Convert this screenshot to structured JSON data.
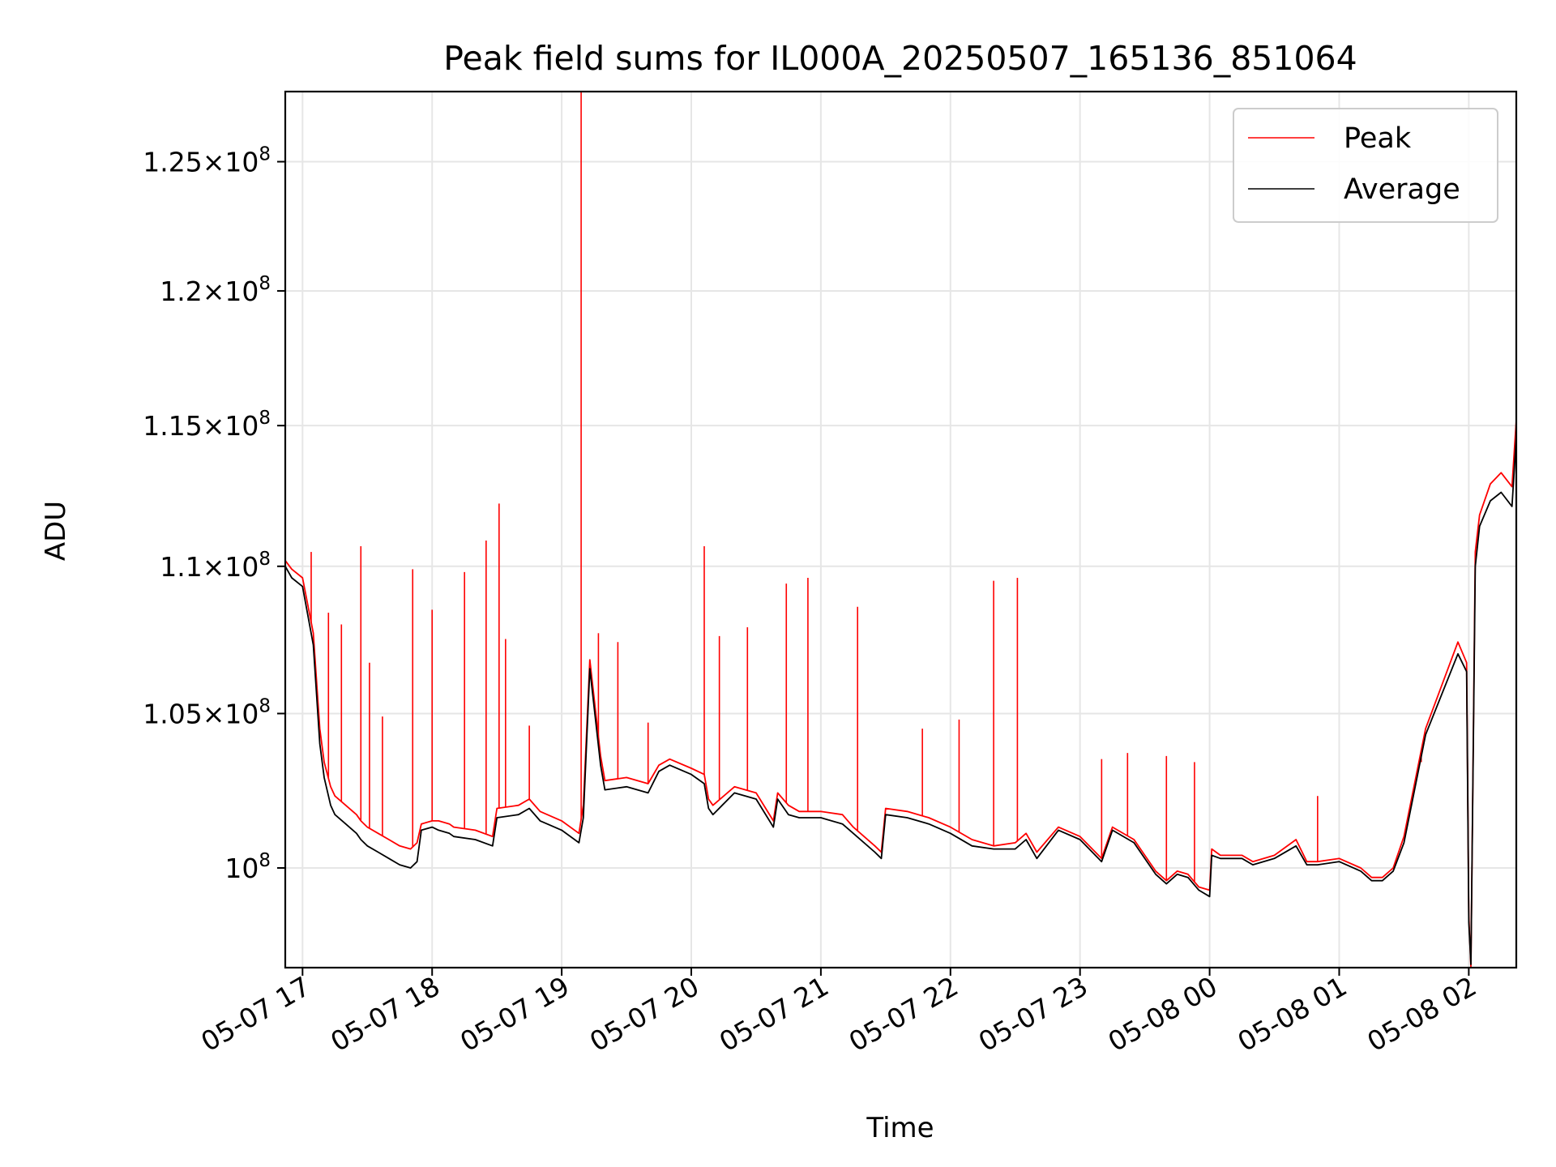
{
  "chart_data": {
    "type": "line",
    "title": "Peak field sums for IL000A_20250507_165136_851064",
    "xlabel": "Time",
    "ylabel": "ADU",
    "y_scale": "log",
    "grid": true,
    "legend_position": "top-right",
    "x_tick_labels": [
      "05-07 17",
      "05-07 18",
      "05-07 19",
      "05-07 20",
      "05-07 21",
      "05-07 22",
      "05-07 23",
      "05-08 00",
      "05-08 01",
      "05-08 02"
    ],
    "y_ticks": [
      {
        "value": 100000000,
        "mantissa": "",
        "exponent": "8"
      },
      {
        "value": 105000000,
        "mantissa": "1.05",
        "exponent": "8"
      },
      {
        "value": 110000000,
        "mantissa": "1.1",
        "exponent": "8"
      },
      {
        "value": 115000000,
        "mantissa": "1.15",
        "exponent": "8"
      },
      {
        "value": 120000000,
        "mantissa": "1.2",
        "exponent": "8"
      },
      {
        "value": 125000000,
        "mantissa": "1.25",
        "exponent": "8"
      }
    ],
    "xlim": [
      "2025-05-07T16:52",
      "2025-05-08T02:22"
    ],
    "ylim": [
      96900000,
      127800000
    ],
    "series": [
      {
        "name": "Peak",
        "color": "#ff0000",
        "x": [
          "2025-05-07T16:52",
          "2025-05-07T16:55",
          "2025-05-07T17:00",
          "2025-05-07T17:05",
          "2025-05-07T17:08",
          "2025-05-07T17:10",
          "2025-05-07T17:13",
          "2025-05-07T17:15",
          "2025-05-07T17:20",
          "2025-05-07T17:25",
          "2025-05-07T17:27",
          "2025-05-07T17:30",
          "2025-05-07T17:35",
          "2025-05-07T17:40",
          "2025-05-07T17:45",
          "2025-05-07T17:50",
          "2025-05-07T17:53",
          "2025-05-07T17:55",
          "2025-05-07T18:00",
          "2025-05-07T18:03",
          "2025-05-07T18:08",
          "2025-05-07T18:10",
          "2025-05-07T18:20",
          "2025-05-07T18:28",
          "2025-05-07T18:30",
          "2025-05-07T18:40",
          "2025-05-07T18:45",
          "2025-05-07T18:50",
          "2025-05-07T19:00",
          "2025-05-07T19:08",
          "2025-05-07T19:10",
          "2025-05-07T19:13",
          "2025-05-07T19:18",
          "2025-05-07T19:20",
          "2025-05-07T19:30",
          "2025-05-07T19:40",
          "2025-05-07T19:45",
          "2025-05-07T19:50",
          "2025-05-07T20:00",
          "2025-05-07T20:06",
          "2025-05-07T20:08",
          "2025-05-07T20:10",
          "2025-05-07T20:20",
          "2025-05-07T20:30",
          "2025-05-07T20:38",
          "2025-05-07T20:40",
          "2025-05-07T20:45",
          "2025-05-07T20:50",
          "2025-05-07T21:00",
          "2025-05-07T21:10",
          "2025-05-07T21:15",
          "2025-05-07T21:25",
          "2025-05-07T21:28",
          "2025-05-07T21:30",
          "2025-05-07T21:40",
          "2025-05-07T21:50",
          "2025-05-07T22:00",
          "2025-05-07T22:10",
          "2025-05-07T22:20",
          "2025-05-07T22:30",
          "2025-05-07T22:35",
          "2025-05-07T22:40",
          "2025-05-07T22:50",
          "2025-05-07T23:00",
          "2025-05-07T23:10",
          "2025-05-07T23:15",
          "2025-05-07T23:25",
          "2025-05-07T23:30",
          "2025-05-07T23:35",
          "2025-05-07T23:40",
          "2025-05-07T23:45",
          "2025-05-07T23:50",
          "2025-05-07T23:55",
          "2025-05-08T00:00",
          "2025-05-08T00:01",
          "2025-05-08T00:05",
          "2025-05-08T00:15",
          "2025-05-08T00:20",
          "2025-05-08T00:30",
          "2025-05-08T00:40",
          "2025-05-08T00:45",
          "2025-05-08T00:50",
          "2025-05-08T01:00",
          "2025-05-08T01:10",
          "2025-05-08T01:15",
          "2025-05-08T01:20",
          "2025-05-08T01:25",
          "2025-05-08T01:30",
          "2025-05-08T01:40",
          "2025-05-08T01:55",
          "2025-05-08T01:59",
          "2025-05-08T02:00",
          "2025-05-08T02:01",
          "2025-05-08T02:03",
          "2025-05-08T02:05",
          "2025-05-08T02:10",
          "2025-05-08T02:15",
          "2025-05-08T02:20",
          "2025-05-08T02:22"
        ],
        "y": [
          110200000,
          109900000,
          109600000,
          107700000,
          104500000,
          103400000,
          102600000,
          102300000,
          102000000,
          101700000,
          101500000,
          101300000,
          101100000,
          100900000,
          100700000,
          100600000,
          100800000,
          101400000,
          101500000,
          101500000,
          101400000,
          101300000,
          101200000,
          101000000,
          101900000,
          102000000,
          102200000,
          101800000,
          101500000,
          101100000,
          102000000,
          106800000,
          103600000,
          102800000,
          102900000,
          102700000,
          103300000,
          103500000,
          103200000,
          103000000,
          102200000,
          102000000,
          102600000,
          102400000,
          101500000,
          102400000,
          102000000,
          101800000,
          101800000,
          101700000,
          101300000,
          100700000,
          100500000,
          101900000,
          101800000,
          101600000,
          101300000,
          100900000,
          100700000,
          100800000,
          101100000,
          100500000,
          101300000,
          101000000,
          100300000,
          101300000,
          100900000,
          100400000,
          99900000,
          99600000,
          99900000,
          99800000,
          99400000,
          99300000,
          100600000,
          100400000,
          100400000,
          100200000,
          100400000,
          100900000,
          100200000,
          100200000,
          100300000,
          100000000,
          99700000,
          99700000,
          100000000,
          101000000,
          104500000,
          107400000,
          106700000,
          98500000,
          96900000,
          110500000,
          111800000,
          112900000,
          113300000,
          112800000,
          115200000
        ]
      },
      {
        "name": "Average",
        "color": "#000000",
        "x": [
          "2025-05-07T16:52",
          "2025-05-07T16:55",
          "2025-05-07T17:00",
          "2025-05-07T17:05",
          "2025-05-07T17:08",
          "2025-05-07T17:10",
          "2025-05-07T17:13",
          "2025-05-07T17:15",
          "2025-05-07T17:20",
          "2025-05-07T17:25",
          "2025-05-07T17:27",
          "2025-05-07T17:30",
          "2025-05-07T17:35",
          "2025-05-07T17:40",
          "2025-05-07T17:45",
          "2025-05-07T17:50",
          "2025-05-07T17:53",
          "2025-05-07T17:55",
          "2025-05-07T18:00",
          "2025-05-07T18:03",
          "2025-05-07T18:08",
          "2025-05-07T18:10",
          "2025-05-07T18:20",
          "2025-05-07T18:28",
          "2025-05-07T18:30",
          "2025-05-07T18:40",
          "2025-05-07T18:45",
          "2025-05-07T18:50",
          "2025-05-07T19:00",
          "2025-05-07T19:08",
          "2025-05-07T19:10",
          "2025-05-07T19:13",
          "2025-05-07T19:18",
          "2025-05-07T19:20",
          "2025-05-07T19:30",
          "2025-05-07T19:40",
          "2025-05-07T19:45",
          "2025-05-07T19:50",
          "2025-05-07T20:00",
          "2025-05-07T20:06",
          "2025-05-07T20:08",
          "2025-05-07T20:10",
          "2025-05-07T20:20",
          "2025-05-07T20:30",
          "2025-05-07T20:38",
          "2025-05-07T20:40",
          "2025-05-07T20:45",
          "2025-05-07T20:50",
          "2025-05-07T21:00",
          "2025-05-07T21:10",
          "2025-05-07T21:15",
          "2025-05-07T21:25",
          "2025-05-07T21:28",
          "2025-05-07T21:30",
          "2025-05-07T21:40",
          "2025-05-07T21:50",
          "2025-05-07T22:00",
          "2025-05-07T22:10",
          "2025-05-07T22:20",
          "2025-05-07T22:30",
          "2025-05-07T22:35",
          "2025-05-07T22:40",
          "2025-05-07T22:50",
          "2025-05-07T23:00",
          "2025-05-07T23:10",
          "2025-05-07T23:15",
          "2025-05-07T23:25",
          "2025-05-07T23:30",
          "2025-05-07T23:35",
          "2025-05-07T23:40",
          "2025-05-07T23:45",
          "2025-05-07T23:50",
          "2025-05-07T23:55",
          "2025-05-08T00:00",
          "2025-05-08T00:01",
          "2025-05-08T00:05",
          "2025-05-08T00:15",
          "2025-05-08T00:20",
          "2025-05-08T00:30",
          "2025-05-08T00:40",
          "2025-05-08T00:45",
          "2025-05-08T00:50",
          "2025-05-08T01:00",
          "2025-05-08T01:10",
          "2025-05-08T01:15",
          "2025-05-08T01:20",
          "2025-05-08T01:25",
          "2025-05-08T01:30",
          "2025-05-08T01:40",
          "2025-05-08T01:55",
          "2025-05-08T01:59",
          "2025-05-08T02:00",
          "2025-05-08T02:01",
          "2025-05-08T02:03",
          "2025-05-08T02:05",
          "2025-05-08T02:10",
          "2025-05-08T02:15",
          "2025-05-08T02:20",
          "2025-05-08T02:22"
        ],
        "y": [
          110000000,
          109600000,
          109300000,
          107300000,
          104000000,
          102900000,
          102000000,
          101700000,
          101400000,
          101100000,
          100900000,
          100700000,
          100500000,
          100300000,
          100100000,
          100000000,
          100200000,
          101200000,
          101300000,
          101200000,
          101100000,
          101000000,
          100900000,
          100700000,
          101600000,
          101700000,
          101900000,
          101500000,
          101200000,
          100800000,
          101600000,
          106500000,
          103300000,
          102500000,
          102600000,
          102400000,
          103100000,
          103300000,
          103000000,
          102700000,
          101900000,
          101700000,
          102400000,
          102200000,
          101300000,
          102200000,
          101700000,
          101600000,
          101600000,
          101400000,
          101100000,
          100500000,
          100300000,
          101700000,
          101600000,
          101400000,
          101100000,
          100700000,
          100600000,
          100600000,
          100900000,
          100300000,
          101200000,
          100900000,
          100200000,
          101200000,
          100800000,
          100300000,
          99800000,
          99500000,
          99800000,
          99700000,
          99300000,
          99100000,
          100400000,
          100300000,
          100300000,
          100100000,
          100300000,
          100700000,
          100100000,
          100100000,
          100200000,
          99900000,
          99600000,
          99600000,
          99900000,
          100800000,
          104300000,
          107000000,
          106400000,
          98300000,
          97000000,
          110000000,
          111400000,
          112300000,
          112600000,
          112100000,
          114600000
        ]
      }
    ],
    "peak_spikes": [
      {
        "x": "2025-05-07T17:04",
        "y": 110500000
      },
      {
        "x": "2025-05-07T17:12",
        "y": 108400000
      },
      {
        "x": "2025-05-07T17:18",
        "y": 108000000
      },
      {
        "x": "2025-05-07T17:27",
        "y": 110700000
      },
      {
        "x": "2025-05-07T17:31",
        "y": 106700000
      },
      {
        "x": "2025-05-07T17:37",
        "y": 104900000
      },
      {
        "x": "2025-05-07T17:51",
        "y": 109900000
      },
      {
        "x": "2025-05-07T18:00",
        "y": 108500000
      },
      {
        "x": "2025-05-07T18:15",
        "y": 109800000
      },
      {
        "x": "2025-05-07T18:25",
        "y": 110900000
      },
      {
        "x": "2025-05-07T18:31",
        "y": 112200000
      },
      {
        "x": "2025-05-07T18:34",
        "y": 107500000
      },
      {
        "x": "2025-05-07T18:45",
        "y": 104600000
      },
      {
        "x": "2025-05-07T19:09",
        "y": 127800000
      },
      {
        "x": "2025-05-07T19:17",
        "y": 107700000
      },
      {
        "x": "2025-05-07T19:26",
        "y": 107400000
      },
      {
        "x": "2025-05-07T19:40",
        "y": 104700000
      },
      {
        "x": "2025-05-07T20:06",
        "y": 110700000
      },
      {
        "x": "2025-05-07T20:13",
        "y": 107600000
      },
      {
        "x": "2025-05-07T20:26",
        "y": 107900000
      },
      {
        "x": "2025-05-07T20:44",
        "y": 109400000
      },
      {
        "x": "2025-05-07T20:54",
        "y": 109600000
      },
      {
        "x": "2025-05-07T21:17",
        "y": 108600000
      },
      {
        "x": "2025-05-07T21:47",
        "y": 104500000
      },
      {
        "x": "2025-05-07T22:04",
        "y": 104800000
      },
      {
        "x": "2025-05-07T22:20",
        "y": 109500000
      },
      {
        "x": "2025-05-07T22:31",
        "y": 109600000
      },
      {
        "x": "2025-05-07T23:10",
        "y": 103500000
      },
      {
        "x": "2025-05-07T23:22",
        "y": 103700000
      },
      {
        "x": "2025-05-07T23:40",
        "y": 103600000
      },
      {
        "x": "2025-05-07T23:53",
        "y": 103400000
      },
      {
        "x": "2025-05-08T00:50",
        "y": 102300000
      },
      {
        "x": "2025-05-08T01:38",
        "y": 103400000
      }
    ]
  }
}
